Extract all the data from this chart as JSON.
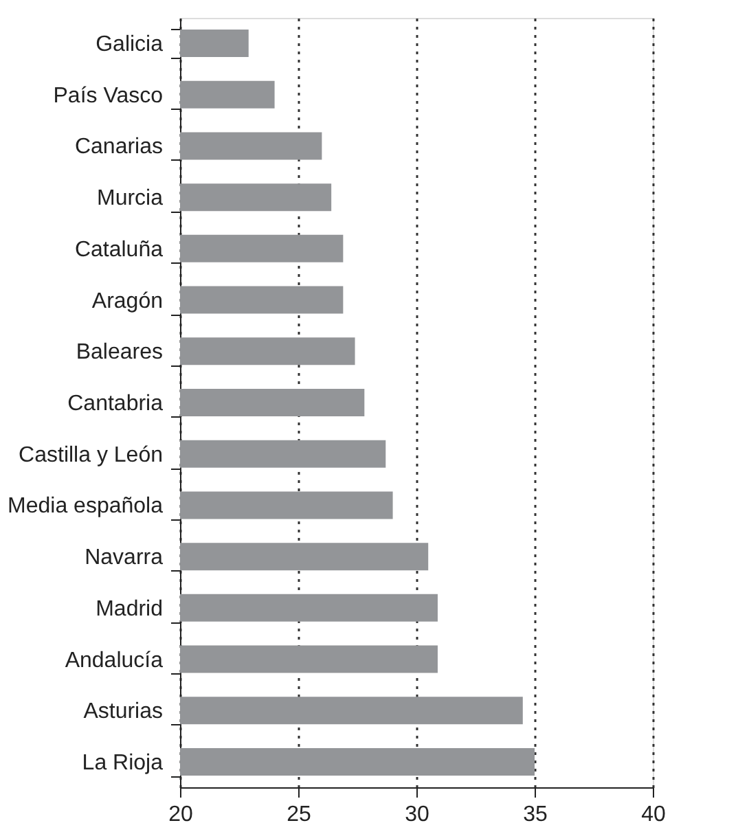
{
  "chart_data": {
    "type": "bar",
    "orientation": "horizontal",
    "categories": [
      "Galicia",
      "País Vasco",
      "Canarias",
      "Murcia",
      "Cataluña",
      "Aragón",
      "Baleares",
      "Cantabria",
      "Castilla y León",
      "Media española",
      "Navarra",
      "Madrid",
      "Andalucía",
      "Asturias",
      "La Rioja"
    ],
    "values": [
      22.9,
      24.0,
      26.0,
      26.4,
      26.9,
      26.9,
      27.4,
      27.8,
      28.7,
      29.0,
      30.5,
      30.9,
      30.9,
      34.5,
      35.0
    ],
    "color": "#939598",
    "xlim": [
      20,
      40
    ],
    "xticks": [
      20,
      25,
      30,
      35,
      40
    ],
    "grid": "x",
    "line_style": "dotted"
  }
}
